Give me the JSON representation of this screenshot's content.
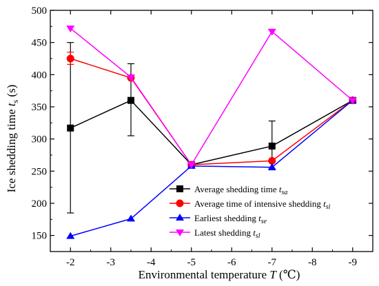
{
  "chart_data": {
    "type": "line",
    "x": [
      -2,
      -3.5,
      -5,
      -7,
      -9
    ],
    "x_tick_labels": [
      "-2",
      "-3",
      "-4",
      "-5",
      "-6",
      "-7",
      "-8",
      "-9"
    ],
    "x_tick_values": [
      -2,
      -3,
      -4,
      -5,
      -6,
      -7,
      -8,
      -9
    ],
    "xlim": [
      -1.5,
      -9.5
    ],
    "ylim": [
      125,
      500
    ],
    "y_tick_labels": [
      "150",
      "200",
      "250",
      "300",
      "350",
      "400",
      "450",
      "500"
    ],
    "y_tick_values": [
      150,
      200,
      250,
      300,
      350,
      400,
      450,
      500
    ],
    "xlabel": {
      "main": "Environmental temperature ",
      "var": "T",
      "unit": " (℃)"
    },
    "ylabel": {
      "main": "Ice shedding time ",
      "var": "t",
      "sub": "s",
      "unit": " (s)"
    },
    "grid": false,
    "legend_position": "bottom-right",
    "series": [
      {
        "name_main": "Average shedding time ",
        "name_var": "t",
        "name_sub": "sa",
        "color": "#000000",
        "marker": "square",
        "values": [
          317,
          360,
          260,
          289,
          360
        ],
        "error": [
          {
            "x": -2,
            "low": 185,
            "high": 450
          },
          {
            "x": -3.5,
            "low": 305,
            "high": 417
          },
          {
            "x": -7,
            "low": 252,
            "high": 328
          }
        ]
      },
      {
        "name_main": "Average time of intensive shedding ",
        "name_var": "t",
        "name_sub": "si",
        "color": "#ff0000",
        "marker": "circle",
        "values": [
          425,
          395,
          260,
          266,
          360
        ],
        "error": [
          {
            "x": -2,
            "low": 416,
            "high": 435
          }
        ]
      },
      {
        "name_main": "Earliest shedding ",
        "name_var": "t",
        "name_sub": "se",
        "color": "#0000ff",
        "marker": "triangle-up",
        "values": [
          149,
          176,
          258,
          256,
          360
        ],
        "error": []
      },
      {
        "name_main": "Latest shedding ",
        "name_var": "t",
        "name_sub": "sl",
        "color": "#ff00ff",
        "marker": "triangle-down",
        "values": [
          472,
          396,
          260,
          467,
          360
        ],
        "error": []
      }
    ]
  }
}
